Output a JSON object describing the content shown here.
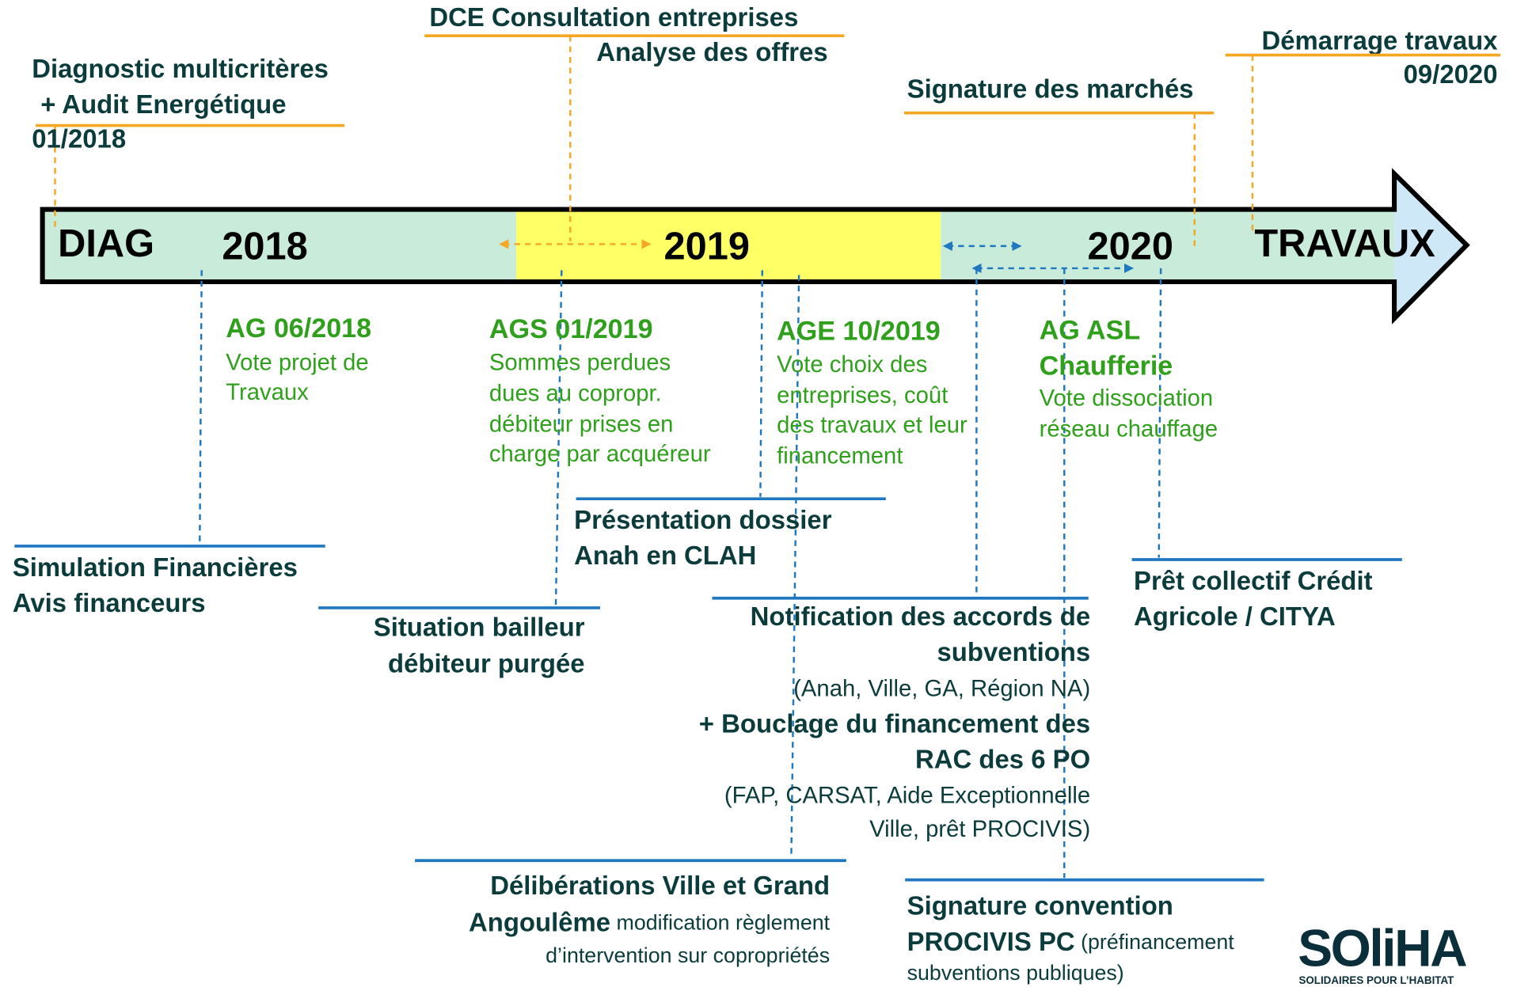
{
  "timeline": {
    "phases": [
      "DIAG",
      "2018",
      "2019",
      "2020",
      "TRAVAUX"
    ]
  },
  "diagnostic": {
    "lines": [
      "Diagnostic multicritères",
      "+ Audit Energétique"
    ],
    "date": "01/2018"
  },
  "dce": {
    "lines": [
      "DCE Consultation entreprises",
      "Analyse des offres"
    ]
  },
  "signature_marches": {
    "title": "Signature des marchés"
  },
  "demarrage": {
    "title": "Démarrage travaux",
    "date": "09/2020"
  },
  "assemblies": [
    {
      "title": "AG 06/2018",
      "lines": [
        "Vote projet de",
        "Travaux"
      ]
    },
    {
      "title": "AGS 01/2019",
      "lines": [
        "Sommes perdues",
        "dues au copropr.",
        "débiteur prises en",
        "charge par acquéreur"
      ]
    },
    {
      "title": "AGE 10/2019",
      "lines": [
        "Vote choix des",
        "entreprises, coût",
        "des travaux et leur",
        "financement"
      ]
    },
    {
      "title": [
        "AG ASL",
        "Chaufferie"
      ],
      "lines": [
        "Vote dissociation",
        "réseau chauffage"
      ]
    }
  ],
  "steps": {
    "simulation": [
      "Simulation Financières",
      "Avis financeurs"
    ],
    "situation": [
      "Situation bailleur",
      "débiteur purgée"
    ],
    "presentation": [
      "Présentation dossier",
      "Anah en CLAH"
    ],
    "notification": {
      "title": [
        "Notification des accords de",
        "subventions"
      ],
      "detail": "(Anah, Ville, GA, Région NA)",
      "bouclage": [
        "+ Bouclage du financement des",
        "RAC des 6 PO"
      ],
      "bouclage_detail": [
        "(FAP, CARSAT, Aide Exceptionnelle",
        "Ville, prêt PROCIVIS)"
      ]
    },
    "deliberations": {
      "line1": "Délibérations Ville et Grand",
      "bold": "Angoulême",
      "normal": " modification règlement",
      "line3": "d’intervention sur copropriétés"
    },
    "procivis": {
      "line1": "Signature convention",
      "bold": "PROCIVIS PC",
      "normal": " (préfinancement",
      "line3": "subventions publiques)"
    },
    "pret": [
      "Prêt collectif Crédit",
      "Agricole / CITYA"
    ]
  },
  "logo": {
    "name": "SOliHA",
    "tagline": "SOLIDAIRES POUR L’HABITAT"
  }
}
